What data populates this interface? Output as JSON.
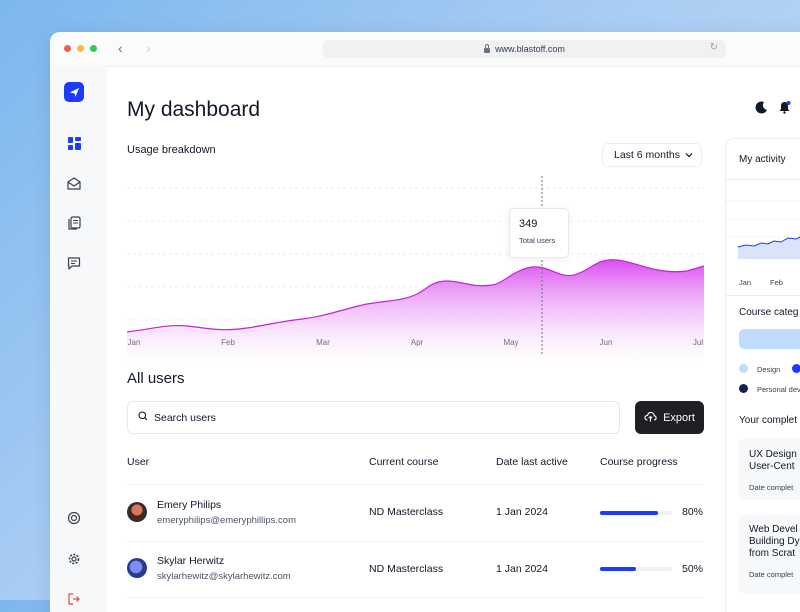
{
  "browser": {
    "url": "www.blastoff.com"
  },
  "colors": {
    "accent": "#1d3bff",
    "area": "#d946ef",
    "dark": "#1f2023"
  },
  "sidebar": {
    "icons": [
      "rocket-icon",
      "dashboard-icon",
      "inbox-icon",
      "documents-icon",
      "message-icon",
      "help-icon",
      "settings-icon",
      "logout-icon"
    ]
  },
  "header": {
    "title": "My dashboard"
  },
  "usage": {
    "label": "Usage breakdown",
    "range": "Last 6 months",
    "tooltip_value": "349",
    "tooltip_label": "Total users"
  },
  "chart_data": {
    "type": "area",
    "x": [
      "Jan",
      "Feb",
      "Mar",
      "Apr",
      "May",
      "Jun",
      "Jul"
    ],
    "highlight": {
      "x": "May",
      "value": 349
    },
    "grid": true
  },
  "users": {
    "title": "All users",
    "search_placeholder": "Search users",
    "export_label": "Export",
    "columns": [
      "User",
      "Current course",
      "Date last active",
      "Course progress"
    ],
    "rows": [
      {
        "name": "Emery Philips",
        "email": "emeryphilips@emeryphillips.com",
        "course": "ND Masterclass",
        "date": "1 Jan 2024",
        "progress": 0.8,
        "progress_label": "80%"
      },
      {
        "name": "Skylar Herwitz",
        "email": "skylarhewitz@skylarhewitz.com",
        "course": "ND Masterclass",
        "date": "1 Jan 2024",
        "progress": 0.5,
        "progress_label": "50%"
      }
    ]
  },
  "right_panel": {
    "activity_title": "My activity",
    "activity_x": [
      "Jan",
      "Feb"
    ],
    "categories_title": "Course categ",
    "legend": [
      "Design",
      "Personal dev"
    ],
    "completed_title": "Your complet",
    "cards": [
      {
        "line1": "UX Design",
        "line2": "User-Cent",
        "meta": "Date complet"
      },
      {
        "line1": "Web Devel",
        "line2": "Building Dy",
        "line3": "from Scrat",
        "meta": "Date complet"
      }
    ]
  }
}
